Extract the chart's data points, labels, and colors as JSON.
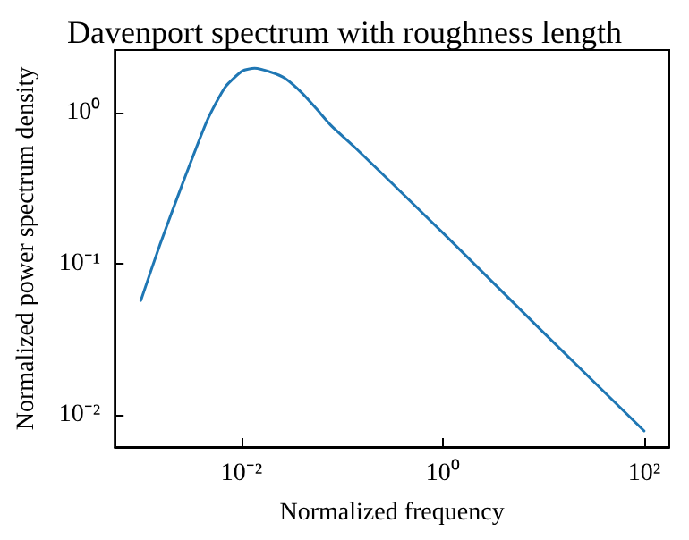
{
  "chart_data": {
    "type": "line",
    "title": "Davenport spectrum with roughness length",
    "xlabel": "Normalized frequency",
    "ylabel": "Normalized power spectrum density",
    "log": "xy",
    "grid": false,
    "marker": "none",
    "line_style": "solid",
    "x": [
      0.001,
      0.00155,
      0.0027,
      0.0046,
      0.0069,
      0.0102,
      0.0135,
      0.02,
      0.027,
      0.04,
      0.055,
      0.078,
      0.13,
      0.3,
      1,
      10,
      100
    ],
    "series": [
      {
        "color": "#1f77b4",
        "values": [
          0.057,
          0.134,
          0.363,
          0.9,
          1.48,
          1.89,
          1.97,
          1.85,
          1.69,
          1.35,
          1.07,
          0.82,
          0.6,
          0.35,
          0.16,
          0.035,
          0.0078
        ]
      }
    ],
    "xlim": [
      0.00055,
      178
    ],
    "ylim": [
      0.0061,
      2.6
    ],
    "xticks": [
      {
        "value": 0.01,
        "label": "10⁻²"
      },
      {
        "value": 1,
        "label": "10⁰"
      },
      {
        "value": 100,
        "label": "10²"
      }
    ],
    "yticks": [
      {
        "value": 0.01,
        "label": "10⁻²"
      },
      {
        "value": 0.1,
        "label": "10⁻¹"
      },
      {
        "value": 1,
        "label": "10⁰"
      }
    ]
  }
}
